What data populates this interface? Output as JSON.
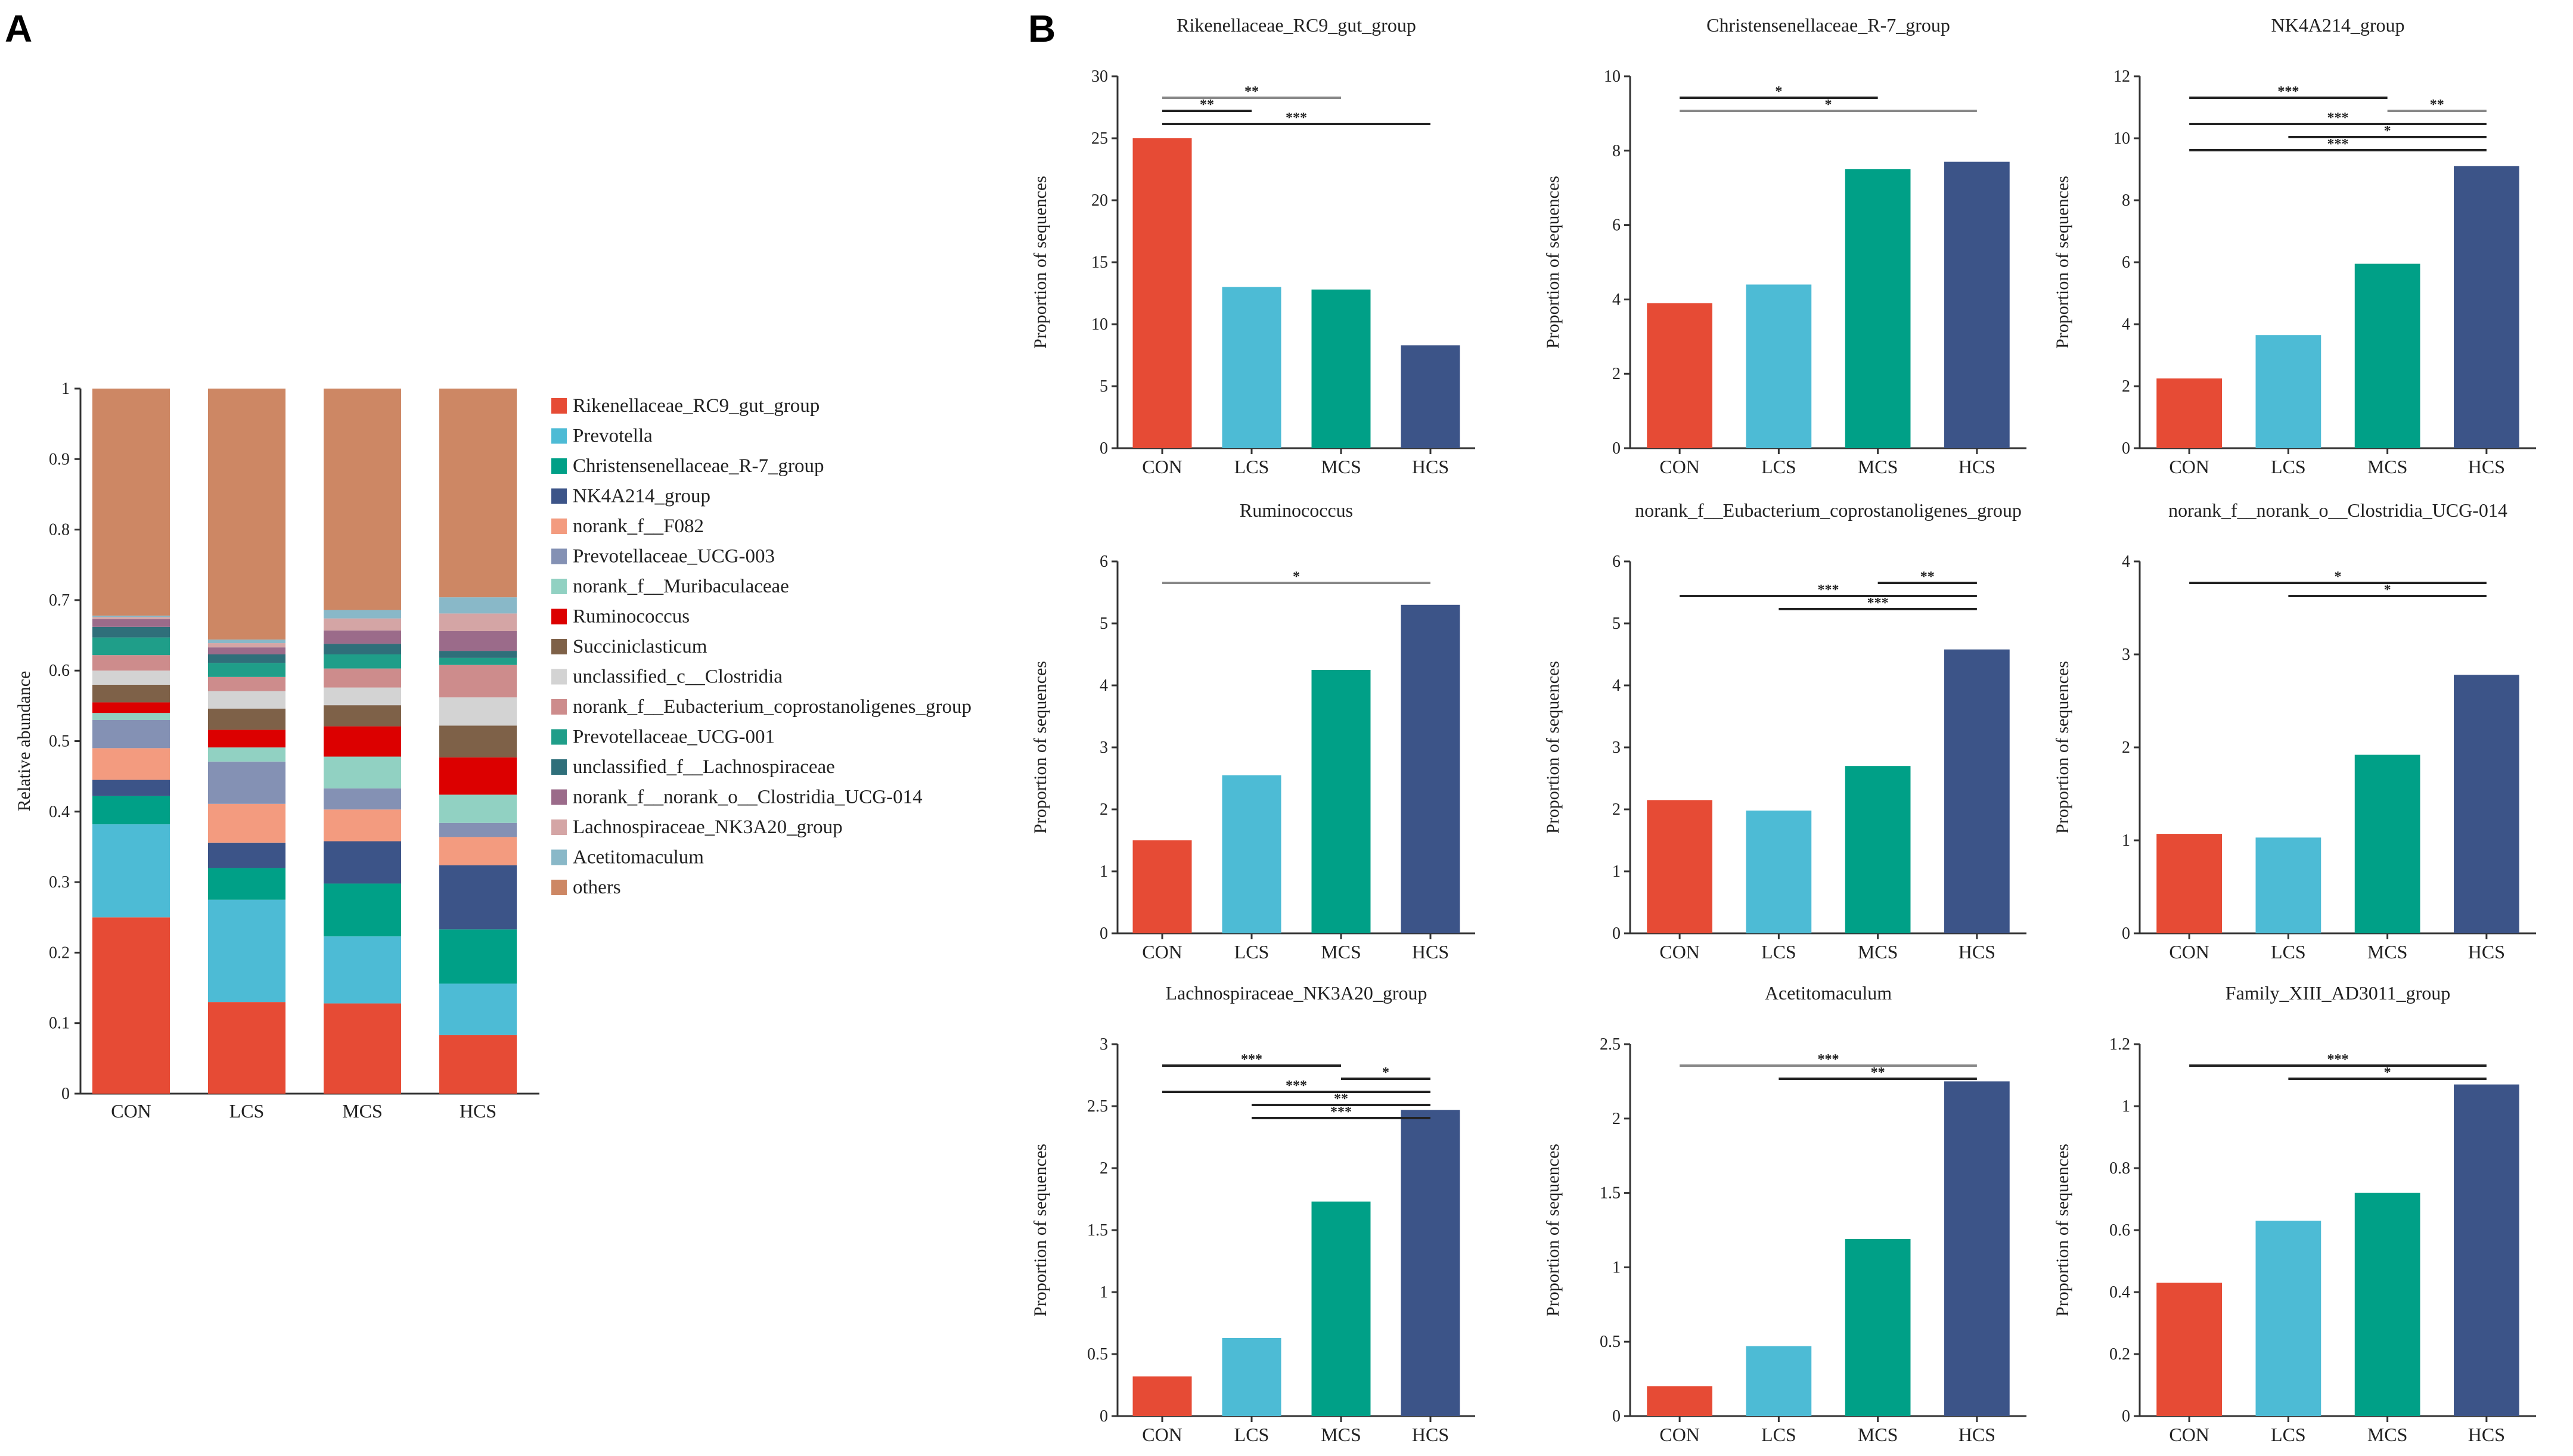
{
  "panel_labels": {
    "a": "A",
    "b": "B"
  },
  "colors": {
    "groups": [
      "#e64b35",
      "#4dbbd5",
      "#00a087",
      "#3c5488"
    ],
    "sig_lines": [
      "#222222",
      "#888888"
    ]
  },
  "chart_data": [
    {
      "type": "stacked_bar",
      "title": "",
      "xlabel": "",
      "ylabel": "Relative abundance",
      "ylim": [
        0,
        1
      ],
      "yticks": [
        "0",
        "0.1",
        "0.2",
        "0.3",
        "0.4",
        "0.5",
        "0.6",
        "0.7",
        "0.8",
        "0.9",
        "1"
      ],
      "categories": [
        "CON",
        "LCS",
        "MCS",
        "HCS"
      ],
      "series": [
        {
          "name": "Rikenellaceae_RC9_gut_group",
          "color": "#e64b35",
          "values": [
            0.25,
            0.13,
            0.128,
            0.083
          ]
        },
        {
          "name": "Prevotella",
          "color": "#4dbbd5",
          "values": [
            0.132,
            0.145,
            0.095,
            0.073
          ]
        },
        {
          "name": "Christensenellaceae_R-7_group",
          "color": "#00a087",
          "values": [
            0.04,
            0.045,
            0.075,
            0.077
          ]
        },
        {
          "name": "NK4A214_group",
          "color": "#3c5488",
          "values": [
            0.023,
            0.036,
            0.06,
            0.091
          ]
        },
        {
          "name": "norank_f__F082",
          "color": "#f39b7f",
          "values": [
            0.045,
            0.055,
            0.045,
            0.04
          ]
        },
        {
          "name": "Prevotellaceae_UCG-003",
          "color": "#8491b4",
          "values": [
            0.04,
            0.06,
            0.03,
            0.02
          ]
        },
        {
          "name": "norank_f__Muribaculaceae",
          "color": "#91d1c2",
          "values": [
            0.01,
            0.02,
            0.045,
            0.04
          ]
        },
        {
          "name": "Ruminococcus",
          "color": "#dc0000",
          "values": [
            0.015,
            0.025,
            0.043,
            0.053
          ]
        },
        {
          "name": "Succiniclasticum",
          "color": "#7e6148",
          "values": [
            0.025,
            0.03,
            0.03,
            0.045
          ]
        },
        {
          "name": "unclassified_c__Clostridia",
          "color": "#d3d3d3",
          "values": [
            0.02,
            0.025,
            0.025,
            0.04
          ]
        },
        {
          "name": "norank_f__Eubacterium_coprostanoligenes_group",
          "color": "#cd8c8c",
          "values": [
            0.022,
            0.02,
            0.027,
            0.046
          ]
        },
        {
          "name": "Prevotellaceae_UCG-001",
          "color": "#1f9e89",
          "values": [
            0.025,
            0.02,
            0.02,
            0.01
          ]
        },
        {
          "name": "unclassified_f__Lachnospiraceae",
          "color": "#2f6f7a",
          "values": [
            0.015,
            0.012,
            0.015,
            0.01
          ]
        },
        {
          "name": "norank_f__norank_o__Clostridia_UCG-014",
          "color": "#9b6b8a",
          "values": [
            0.011,
            0.01,
            0.019,
            0.028
          ]
        },
        {
          "name": "Lachnospiraceae_NK3A20_group",
          "color": "#d4a5a5",
          "values": [
            0.003,
            0.006,
            0.017,
            0.025
          ]
        },
        {
          "name": "Acetitomaculum",
          "color": "#89b8c8",
          "values": [
            0.002,
            0.005,
            0.012,
            0.023
          ]
        },
        {
          "name": "others",
          "color": "#cd8764",
          "values": [
            0.322,
            0.356,
            0.314,
            0.296
          ]
        }
      ]
    },
    {
      "type": "bar",
      "title": "Rikenellaceae_RC9_gut_group",
      "ylabel": "Proportion of sequences",
      "categories": [
        "CON",
        "LCS",
        "MCS",
        "HCS"
      ],
      "values": [
        25.0,
        13.0,
        12.8,
        8.3
      ],
      "ylim": [
        0,
        30
      ],
      "yticks": [
        "0",
        "5",
        "10",
        "15",
        "20",
        "25",
        "30"
      ],
      "significance": [
        {
          "from": 0,
          "to": 2,
          "label": "**",
          "color": "#888888"
        },
        {
          "from": 0,
          "to": 1,
          "label": "**",
          "color": "#222222"
        },
        {
          "from": 0,
          "to": 3,
          "label": "***",
          "color": "#222222"
        }
      ]
    },
    {
      "type": "bar",
      "title": "Christensenellaceae_R-7_group",
      "ylabel": "Proportion of sequences",
      "categories": [
        "CON",
        "LCS",
        "MCS",
        "HCS"
      ],
      "values": [
        3.9,
        4.4,
        7.5,
        7.7
      ],
      "ylim": [
        0,
        10
      ],
      "yticks": [
        "0",
        "2",
        "4",
        "6",
        "8",
        "10"
      ],
      "significance": [
        {
          "from": 0,
          "to": 2,
          "label": "*",
          "color": "#222222"
        },
        {
          "from": 0,
          "to": 3,
          "label": "*",
          "color": "#888888"
        }
      ]
    },
    {
      "type": "bar",
      "title": "NK4A214_group",
      "ylabel": "Proportion of sequences",
      "categories": [
        "CON",
        "LCS",
        "MCS",
        "HCS"
      ],
      "values": [
        2.25,
        3.65,
        5.95,
        9.1
      ],
      "ylim": [
        0,
        12
      ],
      "yticks": [
        "0",
        "2",
        "4",
        "6",
        "8",
        "10",
        "12"
      ],
      "significance": [
        {
          "from": 0,
          "to": 2,
          "label": "***",
          "color": "#222222"
        },
        {
          "from": 2,
          "to": 3,
          "label": "**",
          "color": "#888888"
        },
        {
          "from": 0,
          "to": 3,
          "label": "***",
          "color": "#222222"
        },
        {
          "from": 1,
          "to": 3,
          "label": "*",
          "color": "#222222"
        },
        {
          "from": 0,
          "to": 3,
          "label": "***",
          "color": "#222222"
        }
      ]
    },
    {
      "type": "bar",
      "title": "Ruminococcus",
      "ylabel": "Proportion of sequences",
      "categories": [
        "CON",
        "LCS",
        "MCS",
        "HCS"
      ],
      "values": [
        1.5,
        2.55,
        4.25,
        5.3
      ],
      "ylim": [
        0,
        6
      ],
      "yticks": [
        "0",
        "1",
        "2",
        "3",
        "4",
        "5",
        "6"
      ],
      "significance": [
        {
          "from": 0,
          "to": 3,
          "label": "*",
          "color": "#888888"
        }
      ]
    },
    {
      "type": "bar",
      "title": "norank_f__Eubacterium_coprostanoligenes_group",
      "ylabel": "Proportion of sequences",
      "categories": [
        "CON",
        "LCS",
        "MCS",
        "HCS"
      ],
      "values": [
        2.15,
        1.98,
        2.7,
        4.58
      ],
      "ylim": [
        0,
        6
      ],
      "yticks": [
        "0",
        "1",
        "2",
        "3",
        "4",
        "5",
        "6"
      ],
      "significance": [
        {
          "from": 2,
          "to": 3,
          "label": "**",
          "color": "#222222"
        },
        {
          "from": 0,
          "to": 3,
          "label": "***",
          "color": "#222222"
        },
        {
          "from": 1,
          "to": 3,
          "label": "***",
          "color": "#222222"
        }
      ]
    },
    {
      "type": "bar",
      "title": "norank_f__norank_o__Clostridia_UCG-014",
      "ylabel": "Proportion of sequences",
      "categories": [
        "CON",
        "LCS",
        "MCS",
        "HCS"
      ],
      "values": [
        1.07,
        1.03,
        1.92,
        2.78
      ],
      "ylim": [
        0,
        4
      ],
      "yticks": [
        "0",
        "1",
        "2",
        "3",
        "4"
      ],
      "significance": [
        {
          "from": 0,
          "to": 3,
          "label": "*",
          "color": "#222222"
        },
        {
          "from": 1,
          "to": 3,
          "label": "*",
          "color": "#222222"
        }
      ]
    },
    {
      "type": "bar",
      "title": "Lachnospiraceae_NK3A20_group",
      "ylabel": "Proportion of sequences",
      "categories": [
        "CON",
        "LCS",
        "MCS",
        "HCS"
      ],
      "values": [
        0.32,
        0.63,
        1.73,
        2.47
      ],
      "ylim": [
        0,
        3
      ],
      "yticks": [
        "0",
        "0.5",
        "1",
        "1.5",
        "2",
        "2.5",
        "3"
      ],
      "significance": [
        {
          "from": 0,
          "to": 2,
          "label": "***",
          "color": "#222222"
        },
        {
          "from": 2,
          "to": 3,
          "label": "*",
          "color": "#222222"
        },
        {
          "from": 0,
          "to": 3,
          "label": "***",
          "color": "#222222"
        },
        {
          "from": 1,
          "to": 3,
          "label": "**",
          "color": "#222222"
        },
        {
          "from": 1,
          "to": 3,
          "label": "***",
          "color": "#222222"
        }
      ]
    },
    {
      "type": "bar",
      "title": "Acetitomaculum",
      "ylabel": "Proportion of sequences",
      "categories": [
        "CON",
        "LCS",
        "MCS",
        "HCS"
      ],
      "values": [
        0.2,
        0.47,
        1.19,
        2.25
      ],
      "ylim": [
        0,
        2.5
      ],
      "yticks": [
        "0",
        "0.5",
        "1",
        "1.5",
        "2",
        "2.5"
      ],
      "significance": [
        {
          "from": 0,
          "to": 3,
          "label": "***",
          "color": "#888888"
        },
        {
          "from": 1,
          "to": 3,
          "label": "**",
          "color": "#222222"
        }
      ]
    },
    {
      "type": "bar",
      "title": "Family_XIII_AD3011_group",
      "ylabel": "Proportion of sequences",
      "categories": [
        "CON",
        "LCS",
        "MCS",
        "HCS"
      ],
      "values": [
        0.43,
        0.63,
        0.72,
        1.07
      ],
      "ylim": [
        0,
        1.2
      ],
      "yticks": [
        "0",
        "0.2",
        "0.4",
        "0.6",
        "0.8",
        "1",
        "1.2"
      ],
      "significance": [
        {
          "from": 0,
          "to": 3,
          "label": "***",
          "color": "#222222"
        },
        {
          "from": 1,
          "to": 3,
          "label": "*",
          "color": "#222222"
        }
      ]
    }
  ]
}
